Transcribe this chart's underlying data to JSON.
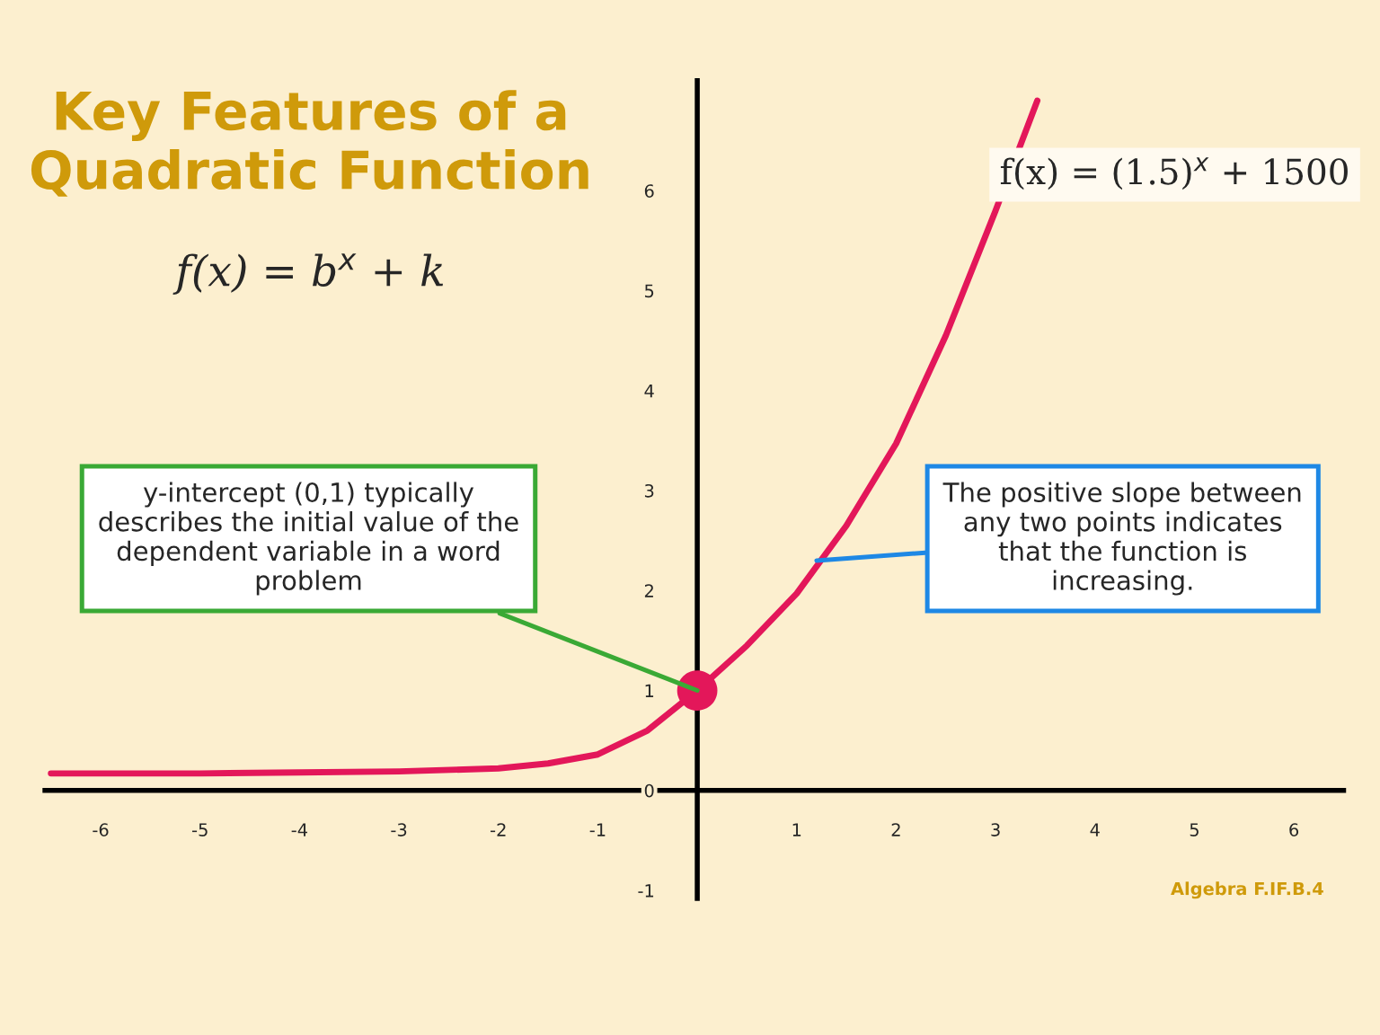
{
  "chart_data": {
    "type": "line",
    "title": "Key Features of a Quadratic Function",
    "subtitle": "f(x) = b$^{x}$ + k",
    "series": [
      {
        "type": "line",
        "color": "#e3175a",
        "x": [
          -6.5,
          -6,
          -5,
          -4,
          -3,
          -2,
          -1.5,
          -1,
          -0.5,
          0,
          0.5,
          1,
          1.5,
          2,
          2.5,
          3,
          3.42
        ],
        "values": [
          0.17,
          0.17,
          0.17,
          0.18,
          0.19,
          0.22,
          0.27,
          0.36,
          0.6,
          1,
          1.45,
          1.97,
          2.65,
          3.47,
          4.55,
          5.8,
          6.9
        ]
      },
      {
        "type": "scatter",
        "color": "#e3175a",
        "marker": "circle",
        "x": [
          0
        ],
        "values": [
          1
        ]
      }
    ],
    "xlim": [
      -6.56,
      6.5
    ],
    "ylim": [
      -1.08,
      7.1
    ],
    "xticks": [
      -6,
      -5,
      -4,
      -3,
      -2,
      -1,
      1,
      2,
      3,
      4,
      5,
      6
    ],
    "yticks": [
      -1,
      0,
      1,
      2,
      3,
      4,
      5,
      6
    ],
    "grid": false,
    "annotations": [
      {
        "text": "y-intercept (0,1) typically\ndescribes the initial value of the\ndependent variable in a word\nproblem",
        "x": 0,
        "y": 1
      },
      {
        "text": "The positive slope between\nany two points indicates\nthat the function is\nincreasing.",
        "x": 1.2,
        "y": 2.3
      },
      "f(x) = (1.5)$^{x}$ + 1500",
      "Algebra F.IF.B.4"
    ]
  }
}
